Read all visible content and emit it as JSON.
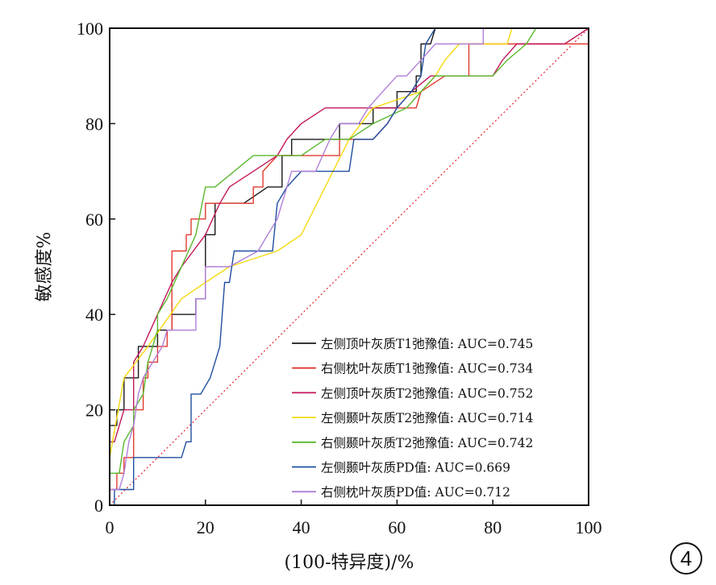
{
  "chart_data": {
    "type": "line",
    "title": "",
    "xlabel": "(100-特异度)/%",
    "ylabel": "敏感度%",
    "xlim": [
      0,
      100
    ],
    "ylim": [
      0,
      100
    ],
    "x_ticks": [
      "0",
      "20",
      "40",
      "60",
      "80",
      "100"
    ],
    "y_ticks": [
      "0",
      "20",
      "40",
      "60",
      "80",
      "100"
    ],
    "grid": false,
    "legend_position": "bottom-right",
    "figure_label": "4",
    "reference_line": {
      "style": "dotted",
      "color": "#e8202a",
      "points": [
        [
          0,
          0
        ],
        [
          100,
          100
        ]
      ]
    },
    "series": [
      {
        "name": "左侧顶叶灰质T1弛豫值: AUC=0.745",
        "color": "#1a1a1a",
        "points": [
          [
            0,
            0
          ],
          [
            0,
            16.7
          ],
          [
            1.5,
            16.7
          ],
          [
            1.5,
            20
          ],
          [
            3,
            20
          ],
          [
            3,
            26.7
          ],
          [
            6,
            26.7
          ],
          [
            6,
            33.3
          ],
          [
            10,
            33.3
          ],
          [
            10,
            36.7
          ],
          [
            13,
            36.7
          ],
          [
            13,
            40
          ],
          [
            18,
            40
          ],
          [
            18,
            43.3
          ],
          [
            20,
            43.3
          ],
          [
            20,
            56.7
          ],
          [
            22,
            56.7
          ],
          [
            22,
            63.3
          ],
          [
            28,
            63.3
          ],
          [
            33,
            66.7
          ],
          [
            36,
            66.7
          ],
          [
            36,
            73.3
          ],
          [
            38,
            73.3
          ],
          [
            38,
            76.7
          ],
          [
            48,
            76.7
          ],
          [
            48,
            80
          ],
          [
            55,
            80
          ],
          [
            55,
            83.3
          ],
          [
            60,
            83.3
          ],
          [
            60,
            86.7
          ],
          [
            64,
            86.7
          ],
          [
            64,
            90
          ],
          [
            65,
            90
          ],
          [
            65,
            96.7
          ],
          [
            67,
            96.7
          ],
          [
            68,
            100
          ],
          [
            100,
            100
          ]
        ]
      },
      {
        "name": "右侧枕叶灰质T1弛豫值: AUC=0.734",
        "color": "#e23a30",
        "points": [
          [
            0,
            0
          ],
          [
            0,
            3.3
          ],
          [
            1.5,
            3.3
          ],
          [
            1.5,
            6.7
          ],
          [
            3,
            6.7
          ],
          [
            3,
            10
          ],
          [
            5,
            10
          ],
          [
            5,
            20
          ],
          [
            7,
            20
          ],
          [
            7,
            26.7
          ],
          [
            8,
            26.7
          ],
          [
            8,
            30
          ],
          [
            10,
            30
          ],
          [
            10,
            33.3
          ],
          [
            12,
            33.3
          ],
          [
            12,
            36.7
          ],
          [
            13,
            36.7
          ],
          [
            13,
            53.3
          ],
          [
            16,
            53.3
          ],
          [
            16,
            56.7
          ],
          [
            17,
            56.7
          ],
          [
            17,
            60
          ],
          [
            20,
            60
          ],
          [
            20,
            63.3
          ],
          [
            28,
            63.3
          ],
          [
            30,
            63.3
          ],
          [
            30,
            66.7
          ],
          [
            32,
            66.7
          ],
          [
            32,
            70
          ],
          [
            35,
            73.3
          ],
          [
            40,
            73.3
          ],
          [
            48,
            73.3
          ],
          [
            48,
            76.7
          ],
          [
            55,
            76.7
          ],
          [
            58,
            80
          ],
          [
            60,
            83.3
          ],
          [
            64,
            83.3
          ],
          [
            65,
            86.7
          ],
          [
            70,
            90
          ],
          [
            75,
            90
          ],
          [
            75,
            96.7
          ],
          [
            82,
            96.7
          ],
          [
            100,
            96.7
          ],
          [
            100,
            100
          ]
        ]
      },
      {
        "name": "左侧顶叶灰质T2弛豫值: AUC=0.752",
        "color": "#c2185b",
        "points": [
          [
            0,
            0
          ],
          [
            0,
            13.3
          ],
          [
            1,
            13.3
          ],
          [
            3,
            20
          ],
          [
            5,
            20
          ],
          [
            5,
            30
          ],
          [
            7,
            33.3
          ],
          [
            10,
            40
          ],
          [
            13,
            46.7
          ],
          [
            15,
            50
          ],
          [
            20,
            56.7
          ],
          [
            23,
            63.3
          ],
          [
            25,
            66.7
          ],
          [
            30,
            70
          ],
          [
            35,
            73.3
          ],
          [
            37,
            76.7
          ],
          [
            40,
            80
          ],
          [
            45,
            83.3
          ],
          [
            52,
            83.3
          ],
          [
            60,
            83.3
          ],
          [
            63,
            86.7
          ],
          [
            67,
            90
          ],
          [
            72,
            90
          ],
          [
            80,
            90
          ],
          [
            82,
            93.3
          ],
          [
            85,
            96.7
          ],
          [
            95,
            96.7
          ],
          [
            100,
            100
          ]
        ]
      },
      {
        "name": "左侧颞叶灰质T2弛豫值: AUC=0.714",
        "color": "#f5d90f",
        "points": [
          [
            0,
            10
          ],
          [
            3,
            26.7
          ],
          [
            8,
            33.3
          ],
          [
            15,
            43.3
          ],
          [
            20,
            46.7
          ],
          [
            25,
            50
          ],
          [
            35,
            53.3
          ],
          [
            40,
            56.7
          ],
          [
            45,
            66.7
          ],
          [
            50,
            76.7
          ],
          [
            55,
            83.3
          ],
          [
            65,
            86.7
          ],
          [
            68,
            90
          ],
          [
            70,
            93.3
          ],
          [
            73,
            96.7
          ],
          [
            80,
            96.7
          ],
          [
            83,
            96.7
          ],
          [
            84,
            100
          ],
          [
            100,
            100
          ]
        ]
      },
      {
        "name": "右侧颞叶灰质T2弛豫值: AUC=0.742",
        "color": "#5ab82d",
        "points": [
          [
            0,
            0
          ],
          [
            0,
            6.7
          ],
          [
            2,
            6.7
          ],
          [
            3,
            13.3
          ],
          [
            5,
            16.7
          ],
          [
            5,
            20
          ],
          [
            7,
            23.3
          ],
          [
            8,
            30
          ],
          [
            10,
            36.7
          ],
          [
            10,
            40
          ],
          [
            12,
            43.3
          ],
          [
            15,
            50
          ],
          [
            18,
            56.7
          ],
          [
            20,
            66.7
          ],
          [
            22,
            66.7
          ],
          [
            30,
            73.3
          ],
          [
            35,
            73.3
          ],
          [
            40,
            73.3
          ],
          [
            45,
            76.7
          ],
          [
            50,
            76.7
          ],
          [
            55,
            80
          ],
          [
            62,
            83.3
          ],
          [
            65,
            86.7
          ],
          [
            68,
            90
          ],
          [
            73,
            90
          ],
          [
            80,
            90
          ],
          [
            83,
            93.3
          ],
          [
            87,
            96.7
          ],
          [
            89,
            100
          ],
          [
            100,
            100
          ]
        ]
      },
      {
        "name": "左侧颞叶灰质PD值: AUC=0.669",
        "color": "#1f4fa0",
        "points": [
          [
            0,
            0
          ],
          [
            1,
            0
          ],
          [
            1,
            3.3
          ],
          [
            3,
            3.3
          ],
          [
            5,
            3.3
          ],
          [
            5,
            10
          ],
          [
            10,
            10
          ],
          [
            15,
            10
          ],
          [
            16,
            13.3
          ],
          [
            17,
            13.3
          ],
          [
            17,
            23.3
          ],
          [
            19,
            23.3
          ],
          [
            21,
            26.7
          ],
          [
            22,
            30
          ],
          [
            23,
            33.3
          ],
          [
            24,
            46.7
          ],
          [
            25,
            46.7
          ],
          [
            26,
            53.3
          ],
          [
            30,
            53.3
          ],
          [
            34,
            53.3
          ],
          [
            35,
            63.3
          ],
          [
            37,
            66.7
          ],
          [
            40,
            70
          ],
          [
            45,
            70
          ],
          [
            50,
            70
          ],
          [
            51,
            76.7
          ],
          [
            55,
            76.7
          ],
          [
            58,
            80
          ],
          [
            60,
            83.3
          ],
          [
            63,
            86.7
          ],
          [
            65,
            90
          ],
          [
            66,
            96.7
          ],
          [
            68,
            100
          ],
          [
            100,
            100
          ]
        ]
      },
      {
        "name": "右侧枕叶灰质PD值: AUC=0.712",
        "color": "#b07fd8",
        "points": [
          [
            0,
            3.3
          ],
          [
            2,
            3.3
          ],
          [
            3,
            6.7
          ],
          [
            4,
            13.3
          ],
          [
            5,
            16.7
          ],
          [
            6,
            23.3
          ],
          [
            7,
            26.7
          ],
          [
            9,
            30
          ],
          [
            11,
            33.3
          ],
          [
            12,
            36.7
          ],
          [
            18,
            36.7
          ],
          [
            18,
            43.3
          ],
          [
            20,
            43.3
          ],
          [
            20,
            50
          ],
          [
            25,
            50
          ],
          [
            31,
            53.3
          ],
          [
            33,
            56.7
          ],
          [
            35,
            60
          ],
          [
            38,
            70
          ],
          [
            43,
            70
          ],
          [
            46,
            76.7
          ],
          [
            48,
            80
          ],
          [
            52,
            80
          ],
          [
            54,
            83.3
          ],
          [
            57,
            86.7
          ],
          [
            60,
            90
          ],
          [
            62,
            90
          ],
          [
            65,
            93.3
          ],
          [
            68,
            96.7
          ],
          [
            75,
            96.7
          ],
          [
            78,
            96.7
          ],
          [
            78,
            100
          ],
          [
            100,
            100
          ]
        ]
      }
    ]
  }
}
